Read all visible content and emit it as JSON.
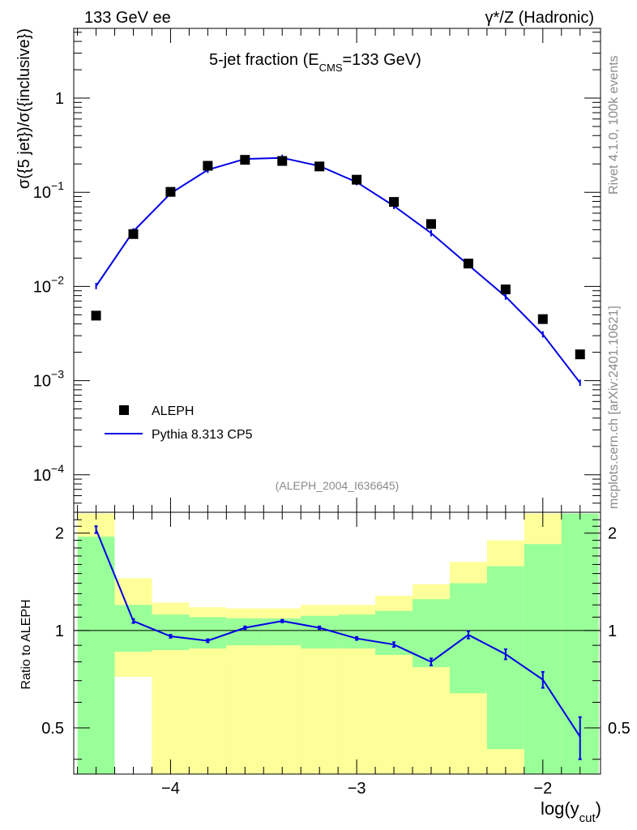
{
  "header": {
    "energy_label": "133 GeV ee",
    "process_label": "γ*/Z (Hadronic)"
  },
  "side_labels": {
    "rivet": "Rivet 4.1.0,  100k events",
    "site": "mcplots.cern.ch [arXiv:2401.10621]"
  },
  "chart_data": [
    {
      "type": "scatter",
      "panel": "main",
      "title": "5-jet fraction (E",
      "title_sub": "CMS",
      "title_tail": "=133 GeV)",
      "ylabel": "σ({5 jet})/σ({inclusive})",
      "xlabel": "log(y",
      "xlabel_sub": "cut",
      "xlabel_tail": ")",
      "yscale": "log",
      "xlim": [
        -4.52,
        -1.69
      ],
      "ylim": [
        4e-05,
        5.5
      ],
      "y_ticks": [
        {
          "v": 0.0001,
          "base": "10",
          "exp": "−4"
        },
        {
          "v": 0.001,
          "base": "10",
          "exp": "−3"
        },
        {
          "v": 0.01,
          "base": "10",
          "exp": "−2"
        },
        {
          "v": 0.1,
          "base": "10",
          "exp": "−1"
        },
        {
          "v": 1,
          "base": "1",
          "exp": ""
        }
      ],
      "analysis_id": "(ALEPH_2004_I636645)",
      "legend": {
        "data": "ALEPH",
        "mc": "Pythia 8.313 CP5"
      },
      "series": [
        {
          "name": "ALEPH",
          "x": [
            -4.4,
            -4.2,
            -4.0,
            -3.8,
            -3.6,
            -3.4,
            -3.2,
            -3.0,
            -2.8,
            -2.6,
            -2.4,
            -2.2,
            -2.0,
            -1.8
          ],
          "y": [
            0.0049,
            0.036,
            0.101,
            0.191,
            0.221,
            0.215,
            0.188,
            0.136,
            0.079,
            0.046,
            0.0175,
            0.0093,
            0.0045,
            0.0019
          ]
        },
        {
          "name": "Pythia 8.313 CP5",
          "x": [
            -4.4,
            -4.2,
            -4.0,
            -3.8,
            -3.6,
            -3.4,
            -3.2,
            -3.0,
            -2.8,
            -2.6,
            -2.4,
            -2.2,
            -2.0,
            -1.8
          ],
          "y": [
            0.0101,
            0.0385,
            0.097,
            0.173,
            0.226,
            0.232,
            0.19,
            0.128,
            0.0715,
            0.0368,
            0.0169,
            0.0078,
            0.0031,
            0.00095
          ]
        }
      ]
    },
    {
      "type": "line",
      "panel": "ratio",
      "ylabel": "Ratio to ALEPH",
      "ylim": [
        0.36,
        2.32
      ],
      "y_ticks": [
        0.5,
        1,
        2
      ],
      "x_ticks": [
        -4,
        -3,
        -2
      ],
      "x_tick_labels": [
        "−4",
        "−3",
        "−2"
      ],
      "band_edges": [
        -4.5,
        -4.3,
        -4.1,
        -3.9,
        -3.7,
        -3.5,
        -3.3,
        -3.1,
        -2.9,
        -2.7,
        -2.5,
        -2.3,
        -2.1,
        -1.9,
        -1.7
      ],
      "green_lo": [
        0.32,
        0.32,
        0.32,
        0.32,
        0.32,
        0.32,
        0.32,
        0.32,
        0.32,
        0.32,
        0.32,
        0.32,
        0.32,
        0.32
      ],
      "green_hi": [
        1.95,
        1.2,
        1.12,
        1.1,
        1.09,
        1.09,
        1.11,
        1.12,
        1.15,
        1.25,
        1.4,
        1.58,
        1.85,
        2.3
      ],
      "yellow_lo": [
        0.32,
        0.72,
        0.32,
        0.32,
        0.32,
        0.32,
        0.32,
        0.32,
        0.32,
        0.32,
        0.32,
        0.32,
        0.32,
        0.32
      ],
      "yellow_hi": [
        2.3,
        1.45,
        1.22,
        1.18,
        1.17,
        1.17,
        1.2,
        1.2,
        1.28,
        1.39,
        1.63,
        1.9,
        2.3,
        2.3
      ],
      "white_lo": [
        0.32,
        0.32,
        0.72,
        0.79,
        0.81,
        0.81,
        0.76,
        0.76,
        0.65,
        0.55,
        0.45,
        0.43,
        0.32,
        0.32
      ],
      "white_hi": [
        0.32,
        0.72,
        0.79,
        0.81,
        0.81,
        0.81,
        0.76,
        0.76,
        0.65,
        0.55,
        0.45,
        0.43,
        0.32,
        0.32
      ],
      "green_inner_lo": [
        0.32,
        0.86,
        0.87,
        0.88,
        0.9,
        0.9,
        0.88,
        0.88,
        0.84,
        0.77,
        0.64,
        0.32,
        0.32,
        0.32
      ],
      "series": [
        {
          "name": "Pythia 8.313 CP5 / ALEPH",
          "x": [
            -4.4,
            -4.2,
            -4.0,
            -3.8,
            -3.6,
            -3.4,
            -3.2,
            -3.0,
            -2.8,
            -2.6,
            -2.4,
            -2.2,
            -2.0,
            -1.8
          ],
          "y": [
            2.05,
            1.07,
            0.96,
            0.93,
            1.02,
            1.07,
            1.02,
            0.945,
            0.905,
            0.8,
            0.97,
            0.845,
            0.705,
            0.47
          ],
          "err": [
            0.05,
            0.015,
            0.01,
            0.01,
            0.01,
            0.01,
            0.01,
            0.01,
            0.015,
            0.02,
            0.025,
            0.03,
            0.04,
            0.07
          ]
        }
      ]
    }
  ],
  "colors": {
    "mc_line": "#0000e6",
    "data_marker": "#000000",
    "band_green": "#99ff99",
    "band_yellow": "#ffff99"
  }
}
